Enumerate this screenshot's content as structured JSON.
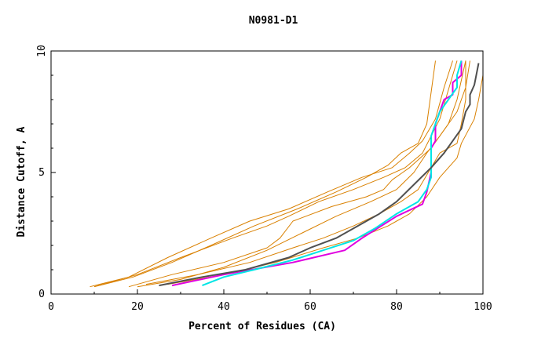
{
  "chart_data": {
    "type": "line",
    "title": "N0981-D1",
    "xlabel": "Percent of Residues (CA)",
    "ylabel": "Distance Cutoff, A",
    "xlim": [
      0,
      100
    ],
    "ylim": [
      0,
      10
    ],
    "x_ticks": [
      "0",
      "20",
      "40",
      "60",
      "80",
      "100"
    ],
    "y_ticks": [
      "0",
      "5",
      "10"
    ],
    "grid": false,
    "series": [
      {
        "name": "orange-1",
        "color": "#d98000",
        "width": 1,
        "x": [
          10,
          20,
          30,
          42,
          50,
          55,
          62,
          70,
          77,
          82,
          86,
          88,
          90,
          92,
          94
        ],
        "y": [
          0.3,
          0.8,
          1.5,
          2.3,
          2.8,
          3.2,
          3.8,
          4.3,
          4.8,
          5.2,
          5.8,
          6.5,
          7.2,
          8.4,
          9.6
        ]
      },
      {
        "name": "orange-2",
        "color": "#d98000",
        "width": 1,
        "x": [
          9,
          18,
          27,
          37,
          46,
          55,
          64,
          72,
          79,
          83,
          86,
          89,
          91,
          93
        ],
        "y": [
          0.3,
          0.7,
          1.5,
          2.3,
          3.0,
          3.5,
          4.2,
          4.8,
          5.2,
          5.8,
          6.3,
          7.2,
          8.5,
          9.6
        ]
      },
      {
        "name": "orange-3",
        "color": "#d98000",
        "width": 1,
        "x": [
          10,
          19,
          28,
          37,
          47,
          57,
          66,
          73,
          78,
          81,
          85,
          87,
          89
        ],
        "y": [
          0.3,
          0.7,
          1.3,
          2.0,
          2.8,
          3.5,
          4.2,
          4.8,
          5.3,
          5.8,
          6.2,
          7.0,
          9.6
        ]
      },
      {
        "name": "orange-4",
        "color": "#d98000",
        "width": 1,
        "x": [
          18,
          28,
          40,
          50,
          53,
          56,
          65,
          73,
          77,
          79,
          83,
          88,
          92,
          94,
          96
        ],
        "y": [
          0.3,
          0.8,
          1.3,
          1.9,
          2.3,
          3.0,
          3.6,
          4.0,
          4.3,
          4.7,
          5.2,
          6.0,
          7.0,
          8.0,
          9.6
        ]
      },
      {
        "name": "orange-5",
        "color": "#d98000",
        "width": 1,
        "x": [
          20,
          30,
          40,
          50,
          58,
          66,
          74,
          80,
          84,
          87,
          90,
          94,
          96,
          97
        ],
        "y": [
          0.3,
          0.6,
          1.1,
          1.8,
          2.5,
          3.2,
          3.8,
          4.3,
          5.0,
          5.8,
          6.5,
          7.5,
          8.5,
          9.6
        ]
      },
      {
        "name": "orange-6",
        "color": "#d98000",
        "width": 1,
        "x": [
          22,
          34,
          46,
          56,
          63,
          70,
          76,
          81,
          85,
          88,
          90,
          94,
          95,
          96,
          96
        ],
        "y": [
          0.4,
          0.8,
          1.3,
          1.9,
          2.3,
          2.8,
          3.3,
          3.8,
          4.3,
          5.2,
          5.8,
          6.2,
          7.0,
          8.0,
          9.6
        ]
      },
      {
        "name": "orange-7",
        "color": "#d98000",
        "width": 1,
        "x": [
          27,
          40,
          52,
          63,
          71,
          78,
          83,
          87,
          90,
          94,
          95,
          98,
          99,
          100,
          100
        ],
        "y": [
          0.4,
          0.8,
          1.3,
          1.9,
          2.3,
          2.8,
          3.3,
          4.0,
          4.8,
          5.6,
          6.2,
          7.2,
          8.0,
          9.0,
          9.6
        ]
      },
      {
        "name": "magenta",
        "color": "#e000e0",
        "width": 2,
        "x": [
          28,
          40,
          56,
          68,
          72,
          80,
          86,
          87,
          88,
          88,
          89,
          89,
          90,
          91,
          93,
          93,
          95,
          95
        ],
        "y": [
          0.35,
          0.8,
          1.3,
          1.8,
          2.3,
          3.2,
          3.7,
          4.2,
          5.0,
          6.0,
          6.3,
          7.0,
          7.5,
          8.0,
          8.2,
          8.7,
          9.0,
          9.6
        ]
      },
      {
        "name": "cyan",
        "color": "#00e5e5",
        "width": 2,
        "x": [
          35,
          40,
          47,
          56,
          63,
          70,
          75,
          80,
          85,
          87,
          88,
          88,
          88,
          89,
          90,
          92,
          94,
          94,
          95
        ],
        "y": [
          0.35,
          0.7,
          1.0,
          1.4,
          1.8,
          2.2,
          2.7,
          3.3,
          3.8,
          4.3,
          4.8,
          5.8,
          6.5,
          7.0,
          7.5,
          8.0,
          8.5,
          9.0,
          9.6
        ]
      },
      {
        "name": "gray",
        "color": "#505050",
        "width": 2,
        "x": [
          25,
          35,
          45,
          55,
          60,
          66,
          71,
          76,
          80,
          84,
          88,
          91,
          93,
          95,
          96,
          97,
          97,
          98,
          99
        ],
        "y": [
          0.35,
          0.7,
          1.0,
          1.5,
          1.9,
          2.3,
          2.8,
          3.3,
          3.8,
          4.5,
          5.2,
          5.8,
          6.3,
          6.8,
          7.5,
          7.8,
          8.2,
          8.6,
          9.5
        ]
      }
    ]
  }
}
